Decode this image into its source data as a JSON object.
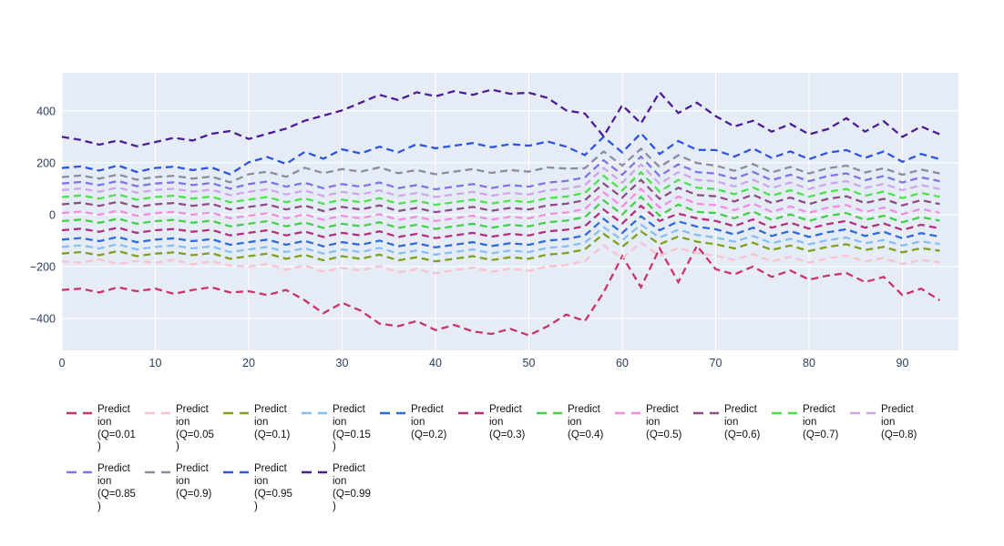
{
  "page": {
    "background": "#ffffff"
  },
  "chart_data": {
    "type": "line",
    "title": "",
    "xlabel": "",
    "ylabel": "",
    "line_style": "dashed",
    "legend_position": "bottom",
    "grid": true,
    "background": "#e5ecf6",
    "grid_color": "#ffffff",
    "tick_color": "#2a3f5f",
    "x_range": [
      0,
      96
    ],
    "y_range": [
      -523,
      547
    ],
    "x_ticks": [
      0,
      10,
      20,
      30,
      40,
      50,
      60,
      70,
      80,
      90
    ],
    "y_ticks": [
      -400,
      -200,
      0,
      200,
      400
    ],
    "x": [
      0,
      2,
      4,
      6,
      8,
      10,
      12,
      14,
      16,
      18,
      20,
      22,
      24,
      26,
      28,
      30,
      32,
      34,
      36,
      38,
      40,
      42,
      44,
      46,
      48,
      50,
      52,
      54,
      56,
      58,
      60,
      62,
      64,
      66,
      68,
      70,
      72,
      74,
      76,
      78,
      80,
      82,
      84,
      86,
      88,
      90,
      92,
      94
    ],
    "series": [
      {
        "id": "q0-01",
        "name": "Prediction (Q=0.01)",
        "label": "Predict\nion\n(Q=0.01\n)",
        "color": "#c9356a",
        "values": [
          -290,
          -285,
          -300,
          -280,
          -295,
          -285,
          -305,
          -290,
          -280,
          -300,
          -295,
          -310,
          -290,
          -330,
          -380,
          -340,
          -370,
          -420,
          -430,
          -410,
          -445,
          -425,
          -450,
          -460,
          -440,
          -465,
          -430,
          -385,
          -410,
          -300,
          -160,
          -280,
          -130,
          -260,
          -120,
          -210,
          -230,
          -200,
          -240,
          -215,
          -250,
          -235,
          -225,
          -260,
          -240,
          -310,
          -285,
          -330
        ]
      },
      {
        "id": "q0-05",
        "name": "Prediction (Q=0.05)",
        "label": "Predict\nion\n(Q=0.05\n)",
        "color": "#f8c3cf",
        "values": [
          -180,
          -185,
          -172,
          -190,
          -178,
          -186,
          -174,
          -192,
          -180,
          -196,
          -200,
          -190,
          -212,
          -196,
          -220,
          -205,
          -215,
          -198,
          -222,
          -210,
          -226,
          -214,
          -204,
          -220,
          -208,
          -216,
          -200,
          -194,
          -178,
          -118,
          -168,
          -108,
          -158,
          -128,
          -148,
          -158,
          -175,
          -152,
          -180,
          -163,
          -185,
          -168,
          -158,
          -180,
          -168,
          -190,
          -174,
          -184
        ]
      },
      {
        "id": "q0-1",
        "name": "Prediction (Q=0.1)",
        "label": "Predict\nion\n(Q=0.1)",
        "color": "#7da121",
        "values": [
          -150,
          -144,
          -156,
          -140,
          -160,
          -150,
          -145,
          -156,
          -148,
          -170,
          -160,
          -150,
          -170,
          -155,
          -176,
          -160,
          -170,
          -154,
          -176,
          -164,
          -180,
          -170,
          -160,
          -175,
          -164,
          -170,
          -154,
          -148,
          -134,
          -74,
          -124,
          -64,
          -114,
          -84,
          -104,
          -114,
          -130,
          -108,
          -136,
          -119,
          -140,
          -124,
          -114,
          -136,
          -124,
          -145,
          -129,
          -139
        ]
      },
      {
        "id": "q0-15",
        "name": "Prediction (Q=0.15)",
        "label": "Predict\nion\n(Q=0.15\n)",
        "color": "#87bff0",
        "values": [
          -124,
          -118,
          -130,
          -114,
          -134,
          -124,
          -119,
          -130,
          -122,
          -144,
          -134,
          -124,
          -144,
          -129,
          -150,
          -134,
          -144,
          -128,
          -150,
          -138,
          -154,
          -144,
          -134,
          -149,
          -138,
          -144,
          -128,
          -122,
          -108,
          -48,
          -98,
          -38,
          -88,
          -58,
          -78,
          -88,
          -104,
          -82,
          -110,
          -93,
          -114,
          -98,
          -88,
          -110,
          -98,
          -119,
          -103,
          -113
        ]
      },
      {
        "id": "q0-2",
        "name": "Prediction (Q=0.2)",
        "label": "Predict\nion\n(Q=0.2)",
        "color": "#2f6bd9",
        "values": [
          -96,
          -90,
          -102,
          -86,
          -106,
          -96,
          -91,
          -102,
          -94,
          -116,
          -106,
          -96,
          -116,
          -101,
          -122,
          -106,
          -116,
          -100,
          -122,
          -110,
          -126,
          -116,
          -106,
          -121,
          -110,
          -116,
          -100,
          -94,
          -80,
          -16,
          -70,
          -6,
          -60,
          -26,
          -46,
          -56,
          -76,
          -50,
          -82,
          -63,
          -86,
          -68,
          -56,
          -82,
          -66,
          -91,
          -71,
          -85
        ]
      },
      {
        "id": "q0-3",
        "name": "Prediction (Q=0.3)",
        "label": "Predict\nion\n(Q=0.3)",
        "color": "#b52f7e",
        "values": [
          -60,
          -54,
          -66,
          -50,
          -70,
          -60,
          -55,
          -66,
          -58,
          -80,
          -70,
          -60,
          -80,
          -65,
          -86,
          -70,
          -80,
          -64,
          -86,
          -74,
          -90,
          -80,
          -70,
          -85,
          -74,
          -80,
          -64,
          -58,
          -44,
          20,
          -34,
          34,
          -24,
          4,
          -14,
          -24,
          -44,
          -18,
          -50,
          -31,
          -54,
          -36,
          -24,
          -50,
          -34,
          -59,
          -39,
          -53
        ]
      },
      {
        "id": "q0-4",
        "name": "Prediction (Q=0.4)",
        "label": "Predict\nion\n(Q=0.4)",
        "color": "#46cf4a",
        "values": [
          -25,
          -19,
          -31,
          -15,
          -35,
          -25,
          -20,
          -31,
          -23,
          -45,
          -35,
          -25,
          -45,
          -30,
          -51,
          -35,
          -45,
          -29,
          -51,
          -39,
          -55,
          -45,
          -35,
          -50,
          -39,
          -45,
          -29,
          -23,
          -9,
          55,
          1,
          69,
          -4,
          39,
          11,
          6,
          -14,
          12,
          -20,
          1,
          -24,
          -4,
          6,
          -20,
          -4,
          -29,
          -9,
          -23
        ]
      },
      {
        "id": "q0-5",
        "name": "Prediction (Q=0.5)",
        "label": "Predict\nion\n(Q=0.5)",
        "color": "#f08fe0",
        "values": [
          6,
          12,
          0,
          16,
          -4,
          6,
          11,
          0,
          8,
          -14,
          -4,
          6,
          -14,
          1,
          -20,
          -4,
          -14,
          2,
          -20,
          -8,
          -24,
          -14,
          -4,
          -19,
          -8,
          -14,
          2,
          8,
          22,
          86,
          32,
          100,
          27,
          70,
          42,
          37,
          17,
          43,
          11,
          32,
          7,
          27,
          37,
          11,
          27,
          2,
          22,
          7
        ]
      },
      {
        "id": "q0-6",
        "name": "Prediction (Q=0.6)",
        "label": "Predict\nion\n(Q=0.6)",
        "color": "#8e4d86",
        "values": [
          40,
          46,
          34,
          50,
          30,
          40,
          45,
          34,
          42,
          20,
          30,
          40,
          20,
          35,
          14,
          30,
          20,
          36,
          14,
          26,
          10,
          20,
          30,
          15,
          26,
          20,
          36,
          42,
          56,
          120,
          66,
          134,
          61,
          104,
          76,
          71,
          51,
          77,
          45,
          66,
          41,
          61,
          71,
          45,
          61,
          36,
          56,
          41
        ]
      },
      {
        "id": "q0-7",
        "name": "Prediction (Q=0.7)",
        "label": "Predict\nion\n(Q=0.7)",
        "color": "#4ee14e",
        "values": [
          68,
          74,
          62,
          78,
          58,
          68,
          73,
          62,
          70,
          48,
          58,
          68,
          48,
          63,
          42,
          58,
          48,
          64,
          42,
          54,
          38,
          48,
          58,
          43,
          54,
          48,
          64,
          70,
          84,
          150,
          94,
          164,
          89,
          134,
          104,
          99,
          79,
          105,
          73,
          94,
          69,
          89,
          99,
          73,
          89,
          64,
          84,
          69
        ]
      },
      {
        "id": "q0-8",
        "name": "Prediction (Q=0.8)",
        "label": "Predict\nion\n(Q=0.8)",
        "color": "#cfa6e8",
        "values": [
          95,
          101,
          89,
          105,
          85,
          95,
          100,
          89,
          97,
          75,
          88,
          98,
          78,
          93,
          72,
          88,
          78,
          94,
          72,
          84,
          68,
          78,
          88,
          73,
          84,
          78,
          94,
          100,
          114,
          180,
          124,
          194,
          119,
          164,
          134,
          129,
          109,
          135,
          103,
          124,
          99,
          119,
          129,
          103,
          119,
          94,
          114,
          99
        ]
      },
      {
        "id": "q0-85",
        "name": "Prediction (Q=0.85)",
        "label": "Predict\nion\n(Q=0.85\n)",
        "color": "#8273e6",
        "values": [
          120,
          126,
          114,
          130,
          110,
          120,
          125,
          114,
          122,
          100,
          118,
          128,
          108,
          123,
          102,
          118,
          108,
          124,
          102,
          114,
          98,
          108,
          118,
          103,
          114,
          108,
          124,
          130,
          144,
          210,
          154,
          224,
          149,
          194,
          164,
          159,
          139,
          165,
          133,
          154,
          129,
          149,
          159,
          133,
          149,
          124,
          144,
          129
        ]
      },
      {
        "id": "q0-9",
        "name": "Prediction (Q=0.9)",
        "label": "Predict\nion\n(Q=0.9)",
        "color": "#8c8ca1",
        "values": [
          145,
          151,
          139,
          155,
          135,
          145,
          150,
          139,
          147,
          125,
          156,
          166,
          146,
          181,
          160,
          176,
          166,
          182,
          160,
          172,
          156,
          166,
          176,
          161,
          172,
          166,
          182,
          178,
          179,
          244,
          189,
          254,
          184,
          229,
          199,
          189,
          169,
          195,
          163,
          184,
          159,
          179,
          189,
          163,
          179,
          154,
          174,
          159
        ]
      },
      {
        "id": "q0-95",
        "name": "Prediction (Q=0.95)",
        "label": "Predict\nion\n(Q=0.95\n)",
        "color": "#2e55e2",
        "values": [
          180,
          186,
          170,
          190,
          165,
          180,
          185,
          172,
          182,
          156,
          202,
          222,
          196,
          242,
          216,
          252,
          236,
          262,
          240,
          272,
          256,
          266,
          276,
          260,
          272,
          266,
          282,
          262,
          230,
          300,
          240,
          314,
          234,
          284,
          250,
          249,
          224,
          255,
          219,
          244,
          214,
          239,
          249,
          219,
          244,
          204,
          234,
          214
        ]
      },
      {
        "id": "q0-99",
        "name": "Prediction (Q=0.99)",
        "label": "Predict\nion\n(Q=0.99\n)",
        "color": "#4c1d95",
        "values": [
          300,
          288,
          270,
          286,
          264,
          280,
          296,
          286,
          312,
          322,
          292,
          312,
          332,
          362,
          382,
          402,
          432,
          462,
          442,
          472,
          456,
          476,
          462,
          482,
          466,
          470,
          450,
          402,
          390,
          302,
          422,
          352,
          472,
          392,
          432,
          380,
          340,
          362,
          320,
          350,
          310,
          330,
          372,
          320,
          360,
          300,
          340,
          310
        ]
      }
    ]
  }
}
